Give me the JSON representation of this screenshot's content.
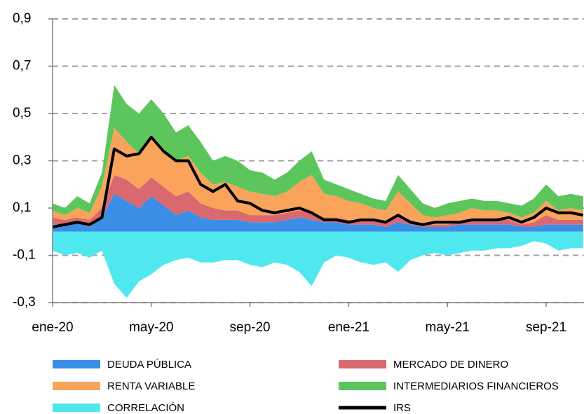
{
  "chart_data": {
    "type": "stacked-area-line",
    "categories": [
      "ene-20",
      null,
      null,
      null,
      null,
      null,
      null,
      null,
      "may-20",
      null,
      null,
      null,
      null,
      null,
      null,
      null,
      "sep-20",
      null,
      null,
      null,
      null,
      null,
      null,
      null,
      "ene-21",
      null,
      null,
      null,
      null,
      null,
      null,
      null,
      "may-21",
      null,
      null,
      null,
      null,
      null,
      null,
      null,
      "sep-21",
      null,
      null,
      null
    ],
    "ylim": [
      -0.3,
      0.9
    ],
    "yticks": [
      {
        "value": 0.9,
        "label": "0,9"
      },
      {
        "value": 0.7,
        "label": "0,7"
      },
      {
        "value": 0.5,
        "label": "0,5"
      },
      {
        "value": 0.3,
        "label": "0,3"
      },
      {
        "value": 0.1,
        "label": "0,1"
      },
      {
        "value": -0.1,
        "label": "-0,1"
      },
      {
        "value": -0.3,
        "label": "-0,3"
      }
    ],
    "grid": true,
    "series": [
      {
        "name": "DEUDA PÚBLICA",
        "color": "#3a8ee6",
        "kind": "area",
        "values": [
          0.03,
          0.03,
          0.04,
          0.02,
          0.06,
          0.16,
          0.13,
          0.1,
          0.15,
          0.11,
          0.07,
          0.09,
          0.06,
          0.05,
          0.05,
          0.05,
          0.04,
          0.04,
          0.04,
          0.05,
          0.06,
          0.05,
          0.04,
          0.04,
          0.03,
          0.03,
          0.03,
          0.02,
          0.04,
          0.03,
          0.02,
          0.02,
          0.02,
          0.03,
          0.03,
          0.03,
          0.03,
          0.03,
          0.02,
          0.02,
          0.03,
          0.03,
          0.03,
          0.03
        ]
      },
      {
        "name": "MERCADO DE DINERO",
        "color": "#d9696f",
        "kind": "area",
        "values": [
          0.03,
          0.02,
          0.02,
          0.03,
          0.04,
          0.08,
          0.09,
          0.08,
          0.08,
          0.08,
          0.08,
          0.08,
          0.06,
          0.05,
          0.04,
          0.04,
          0.03,
          0.03,
          0.03,
          0.03,
          0.03,
          0.03,
          0.02,
          0.02,
          0.02,
          0.02,
          0.02,
          0.02,
          0.03,
          0.02,
          0.01,
          0.01,
          0.01,
          0.01,
          0.02,
          0.02,
          0.02,
          0.02,
          0.01,
          0.02,
          0.04,
          0.02,
          0.02,
          0.02
        ]
      },
      {
        "name": "RENTA VARIABLE",
        "color": "#f9a45a",
        "kind": "area",
        "values": [
          0.03,
          0.02,
          0.04,
          0.03,
          0.09,
          0.2,
          0.16,
          0.15,
          0.18,
          0.16,
          0.15,
          0.15,
          0.13,
          0.1,
          0.12,
          0.1,
          0.1,
          0.09,
          0.08,
          0.09,
          0.12,
          0.16,
          0.1,
          0.09,
          0.08,
          0.07,
          0.05,
          0.05,
          0.1,
          0.07,
          0.04,
          0.03,
          0.04,
          0.04,
          0.05,
          0.04,
          0.04,
          0.03,
          0.03,
          0.04,
          0.06,
          0.04,
          0.05,
          0.04
        ]
      },
      {
        "name": "INTERMEDIARIOS FINANCIEROS",
        "color": "#5cc65c",
        "kind": "area",
        "values": [
          0.03,
          0.03,
          0.05,
          0.04,
          0.06,
          0.18,
          0.16,
          0.17,
          0.15,
          0.15,
          0.12,
          0.13,
          0.13,
          0.1,
          0.11,
          0.11,
          0.09,
          0.09,
          0.07,
          0.08,
          0.09,
          0.1,
          0.06,
          0.05,
          0.05,
          0.04,
          0.04,
          0.04,
          0.07,
          0.06,
          0.05,
          0.04,
          0.05,
          0.05,
          0.04,
          0.04,
          0.04,
          0.04,
          0.05,
          0.06,
          0.07,
          0.06,
          0.06,
          0.06
        ]
      },
      {
        "name": "CORRELACIÓN",
        "color": "#4fe8ee",
        "kind": "area",
        "values": [
          -0.08,
          -0.1,
          -0.09,
          -0.11,
          -0.08,
          -0.22,
          -0.28,
          -0.21,
          -0.18,
          -0.14,
          -0.12,
          -0.11,
          -0.13,
          -0.13,
          -0.12,
          -0.12,
          -0.14,
          -0.15,
          -0.13,
          -0.14,
          -0.17,
          -0.23,
          -0.13,
          -0.1,
          -0.11,
          -0.13,
          -0.14,
          -0.13,
          -0.17,
          -0.12,
          -0.1,
          -0.09,
          -0.1,
          -0.09,
          -0.08,
          -0.08,
          -0.07,
          -0.07,
          -0.06,
          -0.04,
          -0.05,
          -0.08,
          -0.07,
          -0.07
        ]
      },
      {
        "name": "IRS",
        "color": "#000000",
        "kind": "line",
        "values": [
          0.02,
          0.03,
          0.04,
          0.03,
          0.06,
          0.35,
          0.32,
          0.33,
          0.4,
          0.34,
          0.3,
          0.3,
          0.2,
          0.17,
          0.2,
          0.13,
          0.12,
          0.09,
          0.08,
          0.09,
          0.1,
          0.08,
          0.05,
          0.05,
          0.04,
          0.05,
          0.05,
          0.04,
          0.07,
          0.04,
          0.03,
          0.04,
          0.04,
          0.04,
          0.05,
          0.05,
          0.05,
          0.06,
          0.04,
          0.06,
          0.1,
          0.08,
          0.08,
          0.07
        ]
      }
    ]
  }
}
